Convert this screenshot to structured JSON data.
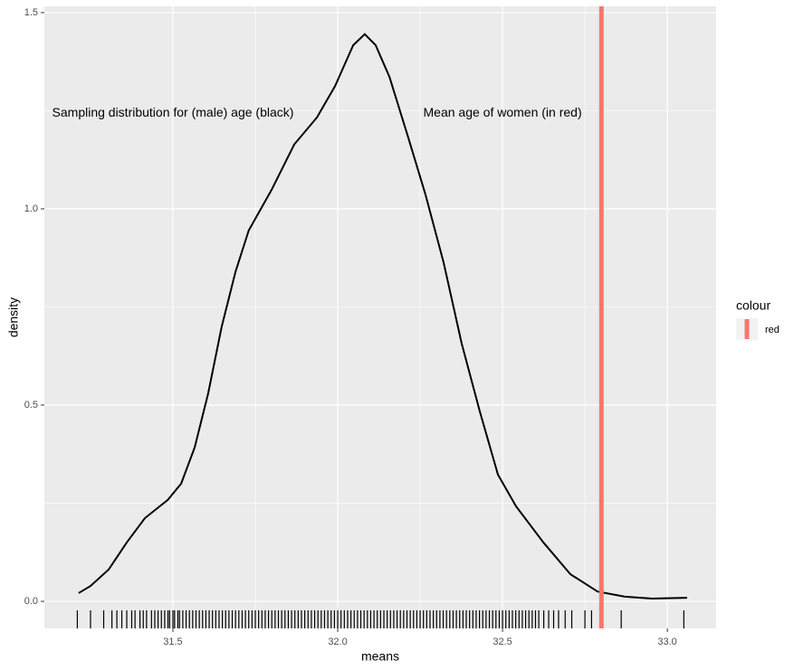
{
  "chart_data": {
    "type": "density",
    "xlabel": "means",
    "ylabel": "density",
    "xlim": [
      31.11,
      33.148
    ],
    "ylim": [
      -0.069,
      1.516
    ],
    "xticks": [
      31.5,
      {
        "value": 32,
        "label": "32.0"
      },
      32.5,
      {
        "value": 33,
        "label": "33.0"
      }
    ],
    "yticks": [
      {
        "value": 0,
        "label": "0.0"
      },
      0.5,
      {
        "value": 1,
        "label": "1.0"
      },
      1.5
    ],
    "grid": true,
    "color": "#000000",
    "x": [
      31.214,
      31.25,
      31.305,
      31.36,
      31.415,
      31.484,
      31.525,
      31.566,
      31.607,
      31.648,
      31.69,
      31.73,
      31.799,
      31.868,
      31.937,
      31.992,
      32.047,
      32.082,
      32.115,
      32.157,
      32.212,
      32.266,
      32.321,
      32.376,
      32.431,
      32.486,
      32.541,
      32.624,
      32.706,
      32.788,
      32.871,
      32.953,
      33.06
    ],
    "values": [
      0.021,
      0.039,
      0.081,
      0.15,
      0.212,
      0.258,
      0.3,
      0.392,
      0.53,
      0.7,
      0.84,
      0.945,
      1.048,
      1.164,
      1.233,
      1.313,
      1.417,
      1.445,
      1.417,
      1.336,
      1.187,
      1.037,
      0.864,
      0.657,
      0.484,
      0.323,
      0.242,
      0.15,
      0.069,
      0.025,
      0.012,
      0.007,
      0.009
    ],
    "rug": [
      31.21,
      31.25,
      31.29,
      31.315,
      31.33,
      31.345,
      31.36,
      31.375,
      31.385,
      31.4,
      31.41,
      31.42,
      31.435,
      31.445,
      31.455,
      31.465,
      31.475,
      31.485,
      31.49,
      31.5,
      31.505,
      31.515,
      31.52,
      31.53,
      31.54,
      31.55,
      31.56,
      31.57,
      31.58,
      31.59,
      31.6,
      31.61,
      31.62,
      31.63,
      31.64,
      31.65,
      31.66,
      31.67,
      31.68,
      31.69,
      31.7,
      31.71,
      31.72,
      31.73,
      31.74,
      31.75,
      31.76,
      31.77,
      31.78,
      31.79,
      31.8,
      31.81,
      31.82,
      31.83,
      31.84,
      31.85,
      31.86,
      31.87,
      31.88,
      31.89,
      31.9,
      31.91,
      31.92,
      31.93,
      31.94,
      31.95,
      31.96,
      31.97,
      31.98,
      31.99,
      32.0,
      32.01,
      32.02,
      32.03,
      32.04,
      32.05,
      32.06,
      32.07,
      32.08,
      32.09,
      32.1,
      32.11,
      32.12,
      32.13,
      32.14,
      32.15,
      32.16,
      32.17,
      32.18,
      32.19,
      32.2,
      32.21,
      32.22,
      32.23,
      32.24,
      32.25,
      32.26,
      32.27,
      32.28,
      32.29,
      32.3,
      32.31,
      32.32,
      32.33,
      32.34,
      32.35,
      32.36,
      32.37,
      32.38,
      32.39,
      32.4,
      32.41,
      32.42,
      32.43,
      32.44,
      32.45,
      32.46,
      32.47,
      32.48,
      32.49,
      32.5,
      32.51,
      32.52,
      32.53,
      32.54,
      32.55,
      32.56,
      32.57,
      32.58,
      32.59,
      32.6,
      32.61,
      32.625,
      32.64,
      32.655,
      32.67,
      32.69,
      32.71,
      32.75,
      32.77,
      32.86,
      33.05
    ],
    "vline": {
      "value": 32.8,
      "color": "#f8766d"
    },
    "annotations": [
      {
        "text": "Sampling distribution for (male) age (black)",
        "x": 31.5,
        "y": 1.244
      },
      {
        "text": "Mean age of women (in red)",
        "x": 32.5,
        "y": 1.244
      }
    ],
    "legend": {
      "title": "colour",
      "entries": [
        "red"
      ],
      "position": "right"
    }
  }
}
